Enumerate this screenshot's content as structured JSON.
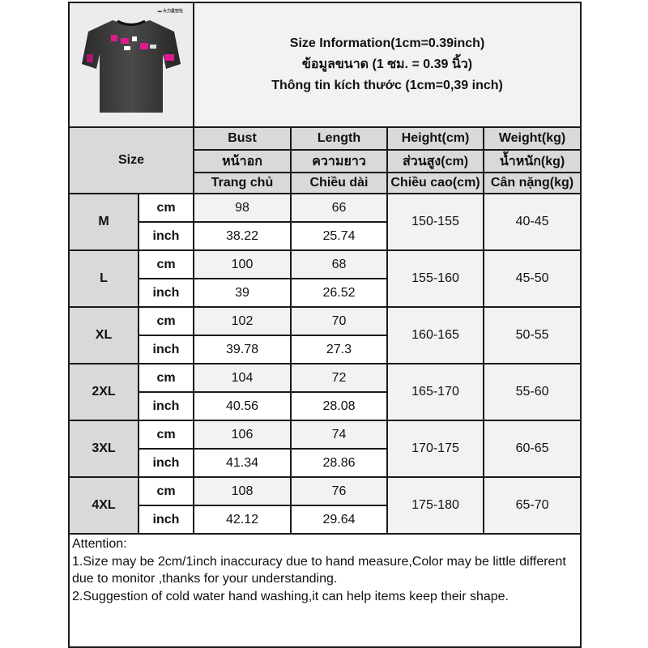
{
  "product_image": {
    "description_icon": "black-tshirt-image",
    "logo_text": "▬▬ 大力星空社",
    "accent_color": "#e0198c"
  },
  "title": {
    "line1": "Size Information(1cm=0.39inch)",
    "line2": "ข้อมูลขนาด (1 ซม. = 0.39 นิ้ว)",
    "line3": "Thông tin kích thước (1cm=0,39 inch)"
  },
  "header": {
    "size_label": "Size",
    "columns": [
      {
        "en": "Bust",
        "th": "หน้าอก",
        "vi": "Trang chủ"
      },
      {
        "en": "Length",
        "th": "ความยาว",
        "vi": "Chiều dài"
      },
      {
        "en": "Height(cm)",
        "th": "ส่วนสูง(cm)",
        "vi": "Chiều cao(cm)"
      },
      {
        "en": "Weight(kg)",
        "th": "น้ำหนัก(kg)",
        "vi": "Cân nặng(kg)"
      }
    ]
  },
  "units": {
    "cm": "cm",
    "inch": "inch"
  },
  "rows": [
    {
      "size": "M",
      "bust_cm": "98",
      "length_cm": "66",
      "bust_inch": "38.22",
      "length_inch": "25.74",
      "height": "150-155",
      "weight": "40-45"
    },
    {
      "size": "L",
      "bust_cm": "100",
      "length_cm": "68",
      "bust_inch": "39",
      "length_inch": "26.52",
      "height": "155-160",
      "weight": "45-50"
    },
    {
      "size": "XL",
      "bust_cm": "102",
      "length_cm": "70",
      "bust_inch": "39.78",
      "length_inch": "27.3",
      "height": "160-165",
      "weight": "50-55"
    },
    {
      "size": "2XL",
      "bust_cm": "104",
      "length_cm": "72",
      "bust_inch": "40.56",
      "length_inch": "28.08",
      "height": "165-170",
      "weight": "55-60"
    },
    {
      "size": "3XL",
      "bust_cm": "106",
      "length_cm": "74",
      "bust_inch": "41.34",
      "length_inch": "28.86",
      "height": "170-175",
      "weight": "60-65"
    },
    {
      "size": "4XL",
      "bust_cm": "108",
      "length_cm": "76",
      "bust_inch": "42.12",
      "length_inch": "29.64",
      "height": "175-180",
      "weight": "65-70"
    }
  ],
  "attention": {
    "heading": "Attention:",
    "note1": "1.Size may be 2cm/1inch inaccuracy due to hand measure,Color may be little different due to monitor ,thanks for your understanding.",
    "note2": "2.Suggestion of cold water hand washing,it can help items keep their shape."
  }
}
